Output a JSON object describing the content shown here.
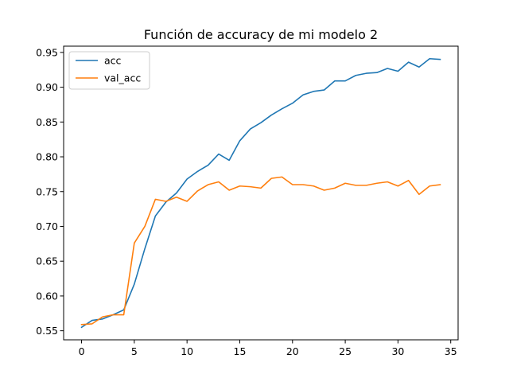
{
  "chart_data": {
    "type": "line",
    "title": "Función de accuracy de mi modelo 2",
    "xlabel": "",
    "ylabel": "",
    "xlim": [
      -1.7,
      35.7
    ],
    "ylim": [
      0.537,
      0.959
    ],
    "xticks": [
      0,
      5,
      10,
      15,
      20,
      25,
      30,
      35
    ],
    "yticks": [
      0.55,
      0.6,
      0.65,
      0.7,
      0.75,
      0.8,
      0.85,
      0.9,
      0.95
    ],
    "xtick_labels": [
      "0",
      "5",
      "10",
      "15",
      "20",
      "25",
      "30",
      "35"
    ],
    "ytick_labels": [
      "0.55",
      "0.60",
      "0.65",
      "0.70",
      "0.75",
      "0.80",
      "0.85",
      "0.90",
      "0.95"
    ],
    "grid": false,
    "legend_position": "top-left",
    "x": [
      0,
      1,
      2,
      3,
      4,
      5,
      6,
      7,
      8,
      9,
      10,
      11,
      12,
      13,
      14,
      15,
      16,
      17,
      18,
      19,
      20,
      21,
      22,
      23,
      24,
      25,
      26,
      27,
      28,
      29,
      30,
      31,
      32,
      33,
      34
    ],
    "series": [
      {
        "name": "acc",
        "color": "#1f77b4",
        "values": [
          0.555,
          0.565,
          0.567,
          0.573,
          0.58,
          0.617,
          0.668,
          0.715,
          0.735,
          0.748,
          0.768,
          0.779,
          0.788,
          0.804,
          0.795,
          0.823,
          0.84,
          0.849,
          0.86,
          0.869,
          0.877,
          0.889,
          0.894,
          0.896,
          0.909,
          0.909,
          0.917,
          0.92,
          0.921,
          0.927,
          0.923,
          0.936,
          0.929,
          0.941,
          0.94
        ]
      },
      {
        "name": "val_acc",
        "color": "#ff7f0e",
        "values": [
          0.559,
          0.56,
          0.57,
          0.573,
          0.573,
          0.676,
          0.7,
          0.739,
          0.736,
          0.742,
          0.736,
          0.751,
          0.76,
          0.764,
          0.752,
          0.758,
          0.757,
          0.755,
          0.769,
          0.771,
          0.76,
          0.76,
          0.758,
          0.752,
          0.755,
          0.762,
          0.759,
          0.759,
          0.762,
          0.764,
          0.758,
          0.766,
          0.746,
          0.758,
          0.76
        ]
      }
    ]
  }
}
